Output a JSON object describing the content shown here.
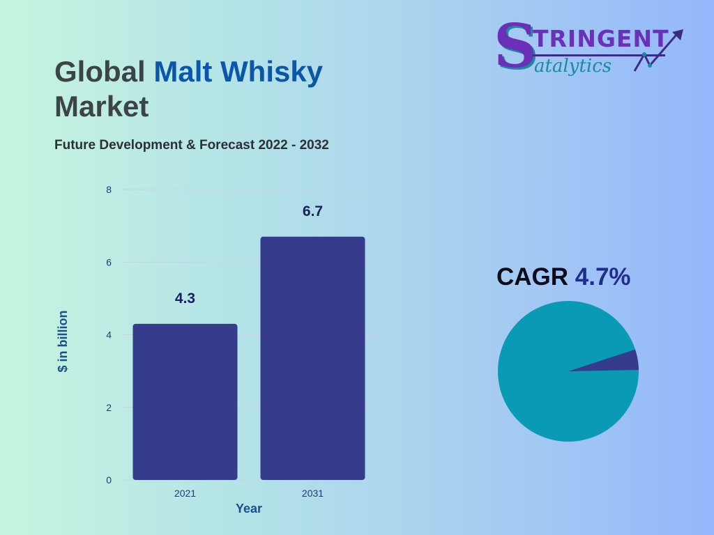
{
  "header": {
    "title_part1": "Global ",
    "title_highlight": "Malt Whisky",
    "title_part2": "Market",
    "subtitle": "Future Development & Forecast 2022 - 2032"
  },
  "logo": {
    "initial": "S",
    "top_text": "TRINGENT",
    "bottom_text": "atalytics"
  },
  "cagr": {
    "label": "CAGR ",
    "value": "4.7%"
  },
  "colors": {
    "bar": "#363c8c",
    "pie_main": "#0a9ab5",
    "pie_slice": "#363c8c",
    "grid": "#c8d3e2",
    "axis_text": "#1e3b6e"
  },
  "chart_data": [
    {
      "type": "bar",
      "categories": [
        "2021",
        "2031"
      ],
      "values": [
        4.3,
        6.7
      ],
      "data_labels": [
        "4.3",
        "6.7"
      ],
      "xlabel": "Year",
      "ylabel": "$ in billion",
      "ylim": [
        0,
        8
      ],
      "yticks": [
        0,
        2,
        4,
        6,
        8
      ],
      "grid": true
    },
    {
      "type": "pie",
      "categories": [
        "",
        ""
      ],
      "values": [
        95.3,
        4.7
      ]
    }
  ]
}
